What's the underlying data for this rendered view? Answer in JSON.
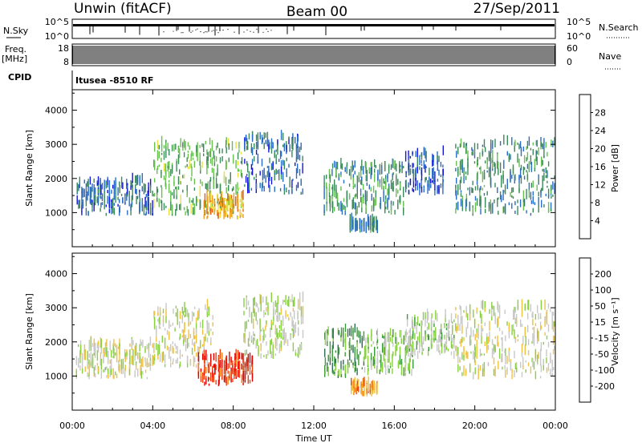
{
  "header": {
    "station": "Unwin (fitACF)",
    "beam": "Beam 00",
    "date": "27/Sep/2011"
  },
  "strips": {
    "nsky_label": "N.Sky",
    "nsky_ticks": [
      "10^5",
      "10^0"
    ],
    "nsearch_label": "N.Search",
    "nsearch_ticks": [
      "10^5",
      "10^0"
    ],
    "freq_label": "Freq.",
    "freq_unit": "[MHz]",
    "freq_ticks": [
      "18",
      "8"
    ],
    "nave_label": "Nave",
    "nave_ticks": [
      "60",
      "0"
    ],
    "cpid_label": "CPID",
    "cpid_text": "Itusea -8510 RF"
  },
  "chart_data": [
    {
      "type": "heatmap",
      "panel": "power",
      "ylabel": "Slant Range [km]",
      "xlabel": "",
      "x_ticks": [
        "00:00",
        "04:00",
        "08:00",
        "12:00",
        "16:00",
        "20:00",
        "00:00"
      ],
      "y_ticks": [
        "1000",
        "2000",
        "3000",
        "4000"
      ],
      "ylim": [
        0,
        4600
      ],
      "xlim_hours": [
        0,
        24
      ],
      "colorbar": {
        "label": "Power [dB]",
        "ticks": [
          "4",
          "8",
          "12",
          "16",
          "20",
          "24",
          "28"
        ],
        "range": [
          0,
          30
        ],
        "colors": [
          "#1414e0",
          "#2a6cc6",
          "#3c8a5a",
          "#68c050",
          "#e8e040",
          "#f0a020",
          "#e86010",
          "#e01010"
        ]
      },
      "echo_regions": [
        {
          "t_start": 0.2,
          "t_end": 4.0,
          "range_min": 900,
          "range_max": 1900,
          "level": 6
        },
        {
          "t_start": 4.0,
          "t_end": 8.5,
          "range_min": 900,
          "range_max": 3000,
          "level": 12
        },
        {
          "t_start": 6.5,
          "t_end": 8.5,
          "range_min": 800,
          "range_max": 1400,
          "level": 20
        },
        {
          "t_start": 8.5,
          "t_end": 11.5,
          "range_min": 1500,
          "range_max": 3200,
          "level": 6
        },
        {
          "t_start": 12.5,
          "t_end": 16.5,
          "range_min": 900,
          "range_max": 2400,
          "level": 10
        },
        {
          "t_start": 13.8,
          "t_end": 15.2,
          "range_min": 400,
          "range_max": 700,
          "level": 8
        },
        {
          "t_start": 16.5,
          "t_end": 18.5,
          "range_min": 1500,
          "range_max": 2700,
          "level": 5
        },
        {
          "t_start": 19.0,
          "t_end": 24.0,
          "range_min": 900,
          "range_max": 3000,
          "level": 9
        }
      ]
    },
    {
      "type": "heatmap",
      "panel": "velocity",
      "ylabel": "Slant Range [km]",
      "xlabel": "Time UT",
      "x_ticks": [
        "00:00",
        "04:00",
        "08:00",
        "12:00",
        "16:00",
        "20:00",
        "00:00"
      ],
      "y_ticks": [
        "1000",
        "2000",
        "3000",
        "4000"
      ],
      "ylim": [
        0,
        4600
      ],
      "xlim_hours": [
        0,
        24
      ],
      "colorbar": {
        "label": "Velocity [m s⁻¹]",
        "ticks": [
          "200",
          "100",
          "50",
          "15",
          "-15",
          "-50",
          "-100",
          "-200"
        ],
        "range": [
          -250,
          250
        ],
        "colors": [
          "#1e3ca0",
          "#2e6e58",
          "#3c9a3c",
          "#88d040",
          "#c8c8c8",
          "#f0c040",
          "#f08010",
          "#f04010",
          "#e00000"
        ]
      },
      "echo_regions": [
        {
          "t_start": 0.2,
          "t_end": 4.0,
          "range_min": 900,
          "range_max": 1900,
          "level": 0
        },
        {
          "t_start": 4.0,
          "t_end": 7.0,
          "range_min": 1200,
          "range_max": 3000,
          "level": 0
        },
        {
          "t_start": 6.2,
          "t_end": 9.0,
          "range_min": 700,
          "range_max": 1500,
          "level": -180
        },
        {
          "t_start": 8.5,
          "t_end": 11.5,
          "range_min": 1500,
          "range_max": 3200,
          "level": 20
        },
        {
          "t_start": 12.5,
          "t_end": 14.5,
          "range_min": 900,
          "range_max": 2300,
          "level": 120
        },
        {
          "t_start": 14.5,
          "t_end": 17.0,
          "range_min": 1000,
          "range_max": 2200,
          "level": 60
        },
        {
          "t_start": 13.8,
          "t_end": 15.2,
          "range_min": 400,
          "range_max": 700,
          "level": -90
        },
        {
          "t_start": 16.5,
          "t_end": 19.0,
          "range_min": 1500,
          "range_max": 2700,
          "level": 40
        },
        {
          "t_start": 19.0,
          "t_end": 24.0,
          "range_min": 900,
          "range_max": 3000,
          "level": 0
        }
      ]
    }
  ]
}
